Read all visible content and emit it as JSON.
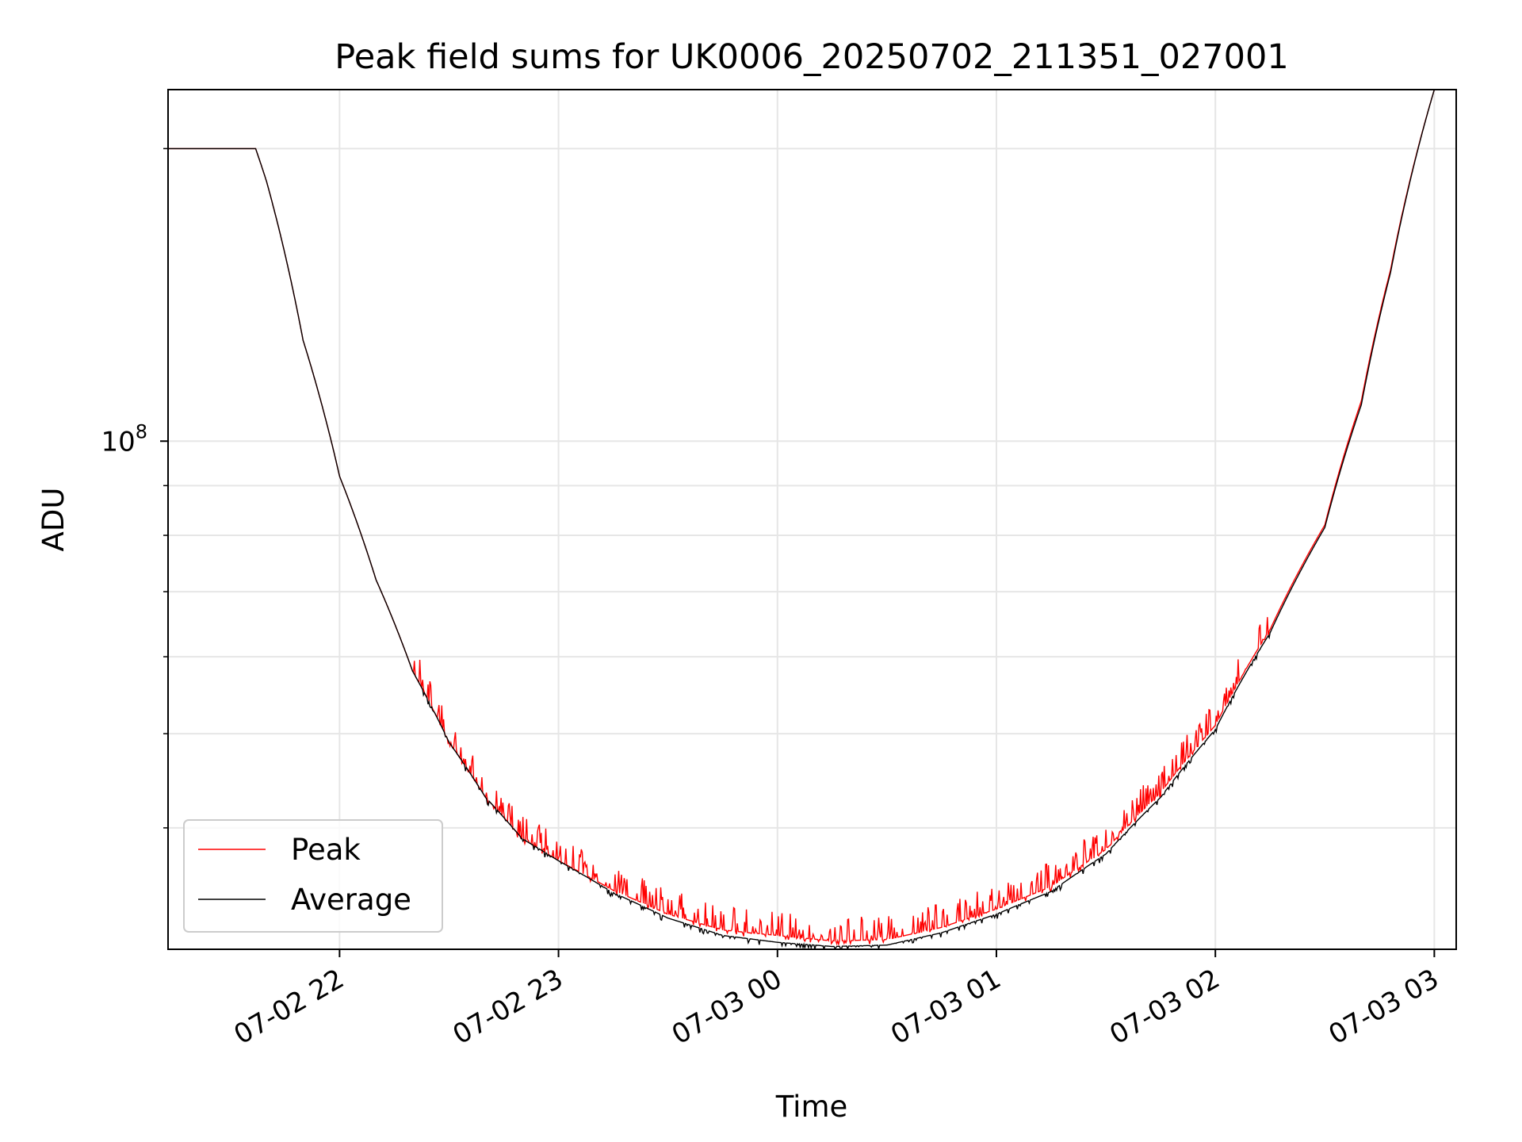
{
  "chart_data": {
    "type": "line",
    "title": "Peak field sums for UK0006_20250702_211351_027001",
    "xlabel": "Time",
    "ylabel": "ADU",
    "yscale": "log",
    "ylim": [
      30000000,
      230000000
    ],
    "xlim": [
      "2025-07-02 21:13",
      "2025-07-03 03:06"
    ],
    "grid": true,
    "legend_position": "lower-left",
    "x_ticks": [
      {
        "time": "2025-07-02 22:00",
        "label": "07-02 22"
      },
      {
        "time": "2025-07-02 23:00",
        "label": "07-02 23"
      },
      {
        "time": "2025-07-03 00:00",
        "label": "07-03 00"
      },
      {
        "time": "2025-07-03 01:00",
        "label": "07-03 01"
      },
      {
        "time": "2025-07-03 02:00",
        "label": "07-03 02"
      },
      {
        "time": "2025-07-03 03:00",
        "label": "07-03 03"
      }
    ],
    "y_major_ticks": [
      {
        "value": 100000000,
        "label": "10^8"
      }
    ],
    "y_minor_ticks": [
      40000000,
      50000000,
      60000000,
      70000000,
      80000000,
      90000000,
      200000000
    ],
    "series": [
      {
        "name": "Peak",
        "color": "#ff0000",
        "x": [
          "2025-07-02 21:13",
          "2025-07-02 21:30",
          "2025-07-02 21:37",
          "2025-07-02 21:40",
          "2025-07-02 21:50",
          "2025-07-02 22:00",
          "2025-07-02 22:10",
          "2025-07-02 22:20",
          "2025-07-02 22:30",
          "2025-07-02 22:40",
          "2025-07-02 22:50",
          "2025-07-02 23:00",
          "2025-07-02 23:15",
          "2025-07-02 23:30",
          "2025-07-02 23:45",
          "2025-07-03 00:00",
          "2025-07-03 00:15",
          "2025-07-03 00:30",
          "2025-07-03 00:45",
          "2025-07-03 01:00",
          "2025-07-03 01:15",
          "2025-07-03 01:30",
          "2025-07-03 01:45",
          "2025-07-03 02:00",
          "2025-07-03 02:15",
          "2025-07-03 02:30",
          "2025-07-03 02:40",
          "2025-07-03 02:48",
          "2025-07-03 03:00",
          "2025-07-03 03:05"
        ],
        "values": [
          200000000,
          200000000,
          200000000,
          185000000,
          127000000,
          92000000,
          72000000,
          58000000,
          49000000,
          43000000,
          39000000,
          37000000,
          34500000,
          32600000,
          31400000,
          31000000,
          30600000,
          30700000,
          31600000,
          33000000,
          34800000,
          38000000,
          43500000,
          51000000,
          64000000,
          82000000,
          110000000,
          150000000,
          230000000,
          230000000
        ]
      },
      {
        "name": "Average",
        "color": "#000000",
        "x": [
          "2025-07-02 21:13",
          "2025-07-02 21:30",
          "2025-07-02 21:37",
          "2025-07-02 21:40",
          "2025-07-02 21:50",
          "2025-07-02 22:00",
          "2025-07-02 22:10",
          "2025-07-02 22:20",
          "2025-07-02 22:30",
          "2025-07-02 22:40",
          "2025-07-02 22:50",
          "2025-07-02 23:00",
          "2025-07-02 23:15",
          "2025-07-02 23:30",
          "2025-07-02 23:45",
          "2025-07-03 00:00",
          "2025-07-03 00:15",
          "2025-07-03 00:30",
          "2025-07-03 00:45",
          "2025-07-03 01:00",
          "2025-07-03 01:15",
          "2025-07-03 01:30",
          "2025-07-03 01:45",
          "2025-07-03 02:00",
          "2025-07-03 02:15",
          "2025-07-03 02:30",
          "2025-07-03 02:40",
          "2025-07-03 02:48",
          "2025-07-03 03:00",
          "2025-07-03 03:05"
        ],
        "values": [
          200000000,
          200000000,
          200000000,
          185000000,
          127000000,
          92000000,
          72000000,
          58000000,
          49000000,
          43000000,
          39000000,
          37000000,
          34300000,
          32300000,
          31000000,
          30500000,
          30200000,
          30300000,
          31200000,
          32600000,
          34400000,
          37600000,
          43000000,
          50500000,
          63500000,
          81500000,
          109000000,
          149000000,
          230000000,
          230000000
        ]
      }
    ],
    "noise_spikes": {
      "series": "Peak",
      "start": "2025-07-02 22:20",
      "end": "2025-07-03 02:15",
      "max_relative_amplitude": 0.06
    }
  }
}
